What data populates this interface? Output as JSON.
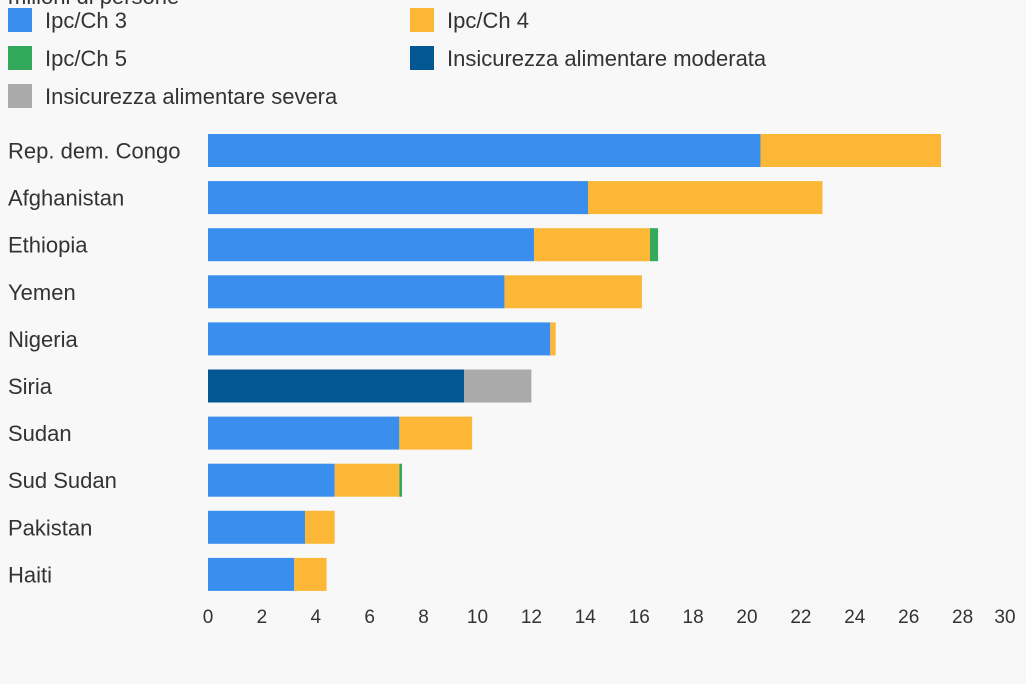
{
  "chart_data": {
    "type": "bar",
    "orientation": "horizontal",
    "stacked": true,
    "legend_title": "milioni di persone",
    "categories": [
      "Rep. dem. Congo",
      "Afghanistan",
      "Ethiopia",
      "Yemen",
      "Nigeria",
      "Siria",
      "Sudan",
      "Sud Sudan",
      "Pakistan",
      "Haiti"
    ],
    "series": [
      {
        "name": "Ipc/Ch 3",
        "color": "#3a8eed",
        "values": [
          20.5,
          14.1,
          12.1,
          11.0,
          12.7,
          0,
          7.1,
          4.7,
          3.6,
          3.2
        ]
      },
      {
        "name": "Ipc/Ch 4",
        "color": "#fdb737",
        "values": [
          6.7,
          8.7,
          4.3,
          5.1,
          0.2,
          0,
          2.7,
          2.4,
          1.1,
          1.2
        ]
      },
      {
        "name": "Ipc/Ch 5",
        "color": "#33a95c",
        "values": [
          0,
          0,
          0.3,
          0,
          0,
          0,
          0,
          0.1,
          0,
          0
        ]
      },
      {
        "name": "Insicurezza alimentare moderata",
        "color": "#035893",
        "values": [
          0,
          0,
          0,
          0,
          0,
          9.5,
          0,
          0,
          0,
          0
        ]
      },
      {
        "name": "Insicurezza alimentare severa",
        "color": "#aaaaaa",
        "values": [
          0,
          0,
          0,
          0,
          0,
          2.5,
          0,
          0,
          0,
          0
        ]
      }
    ],
    "xlim": [
      0,
      30
    ],
    "xticks": [
      0,
      2,
      4,
      6,
      8,
      10,
      12,
      14,
      16,
      18,
      20,
      22,
      24,
      26,
      28,
      30
    ],
    "legend_position": "top"
  }
}
